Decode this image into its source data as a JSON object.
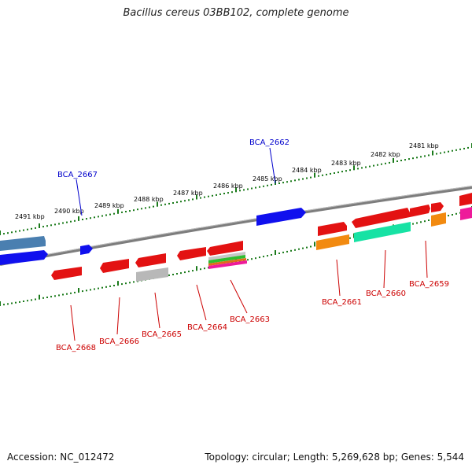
{
  "title": "Bacillus cereus 03BB102, complete genome",
  "footer": {
    "accession": "Accession: NC_012472",
    "summary": "Topology: circular; Length: 5,269,628 bp; Genes: 5,544"
  },
  "colors": {
    "backbone": "#8a8a8a",
    "ticks": "#1a7a1a",
    "label_blue": "#0000cc",
    "label_red": "#cc0000"
  },
  "kbp_labels": [
    "2491 kbp",
    "2490 kbp",
    "2489 kbp",
    "2488 kbp",
    "2487 kbp",
    "2486 kbp",
    "2485 kbp",
    "2484 kbp",
    "2483 kbp",
    "2482 kbp",
    "2481 kbp"
  ],
  "gene_labels_top": [
    "BCA_2667",
    "BCA_2662"
  ],
  "gene_labels_bottom": [
    "BCA_2668",
    "BCA_2666",
    "BCA_2665",
    "BCA_2664",
    "BCA_2663",
    "BCA_2661",
    "BCA_2660",
    "BCA_2659"
  ]
}
